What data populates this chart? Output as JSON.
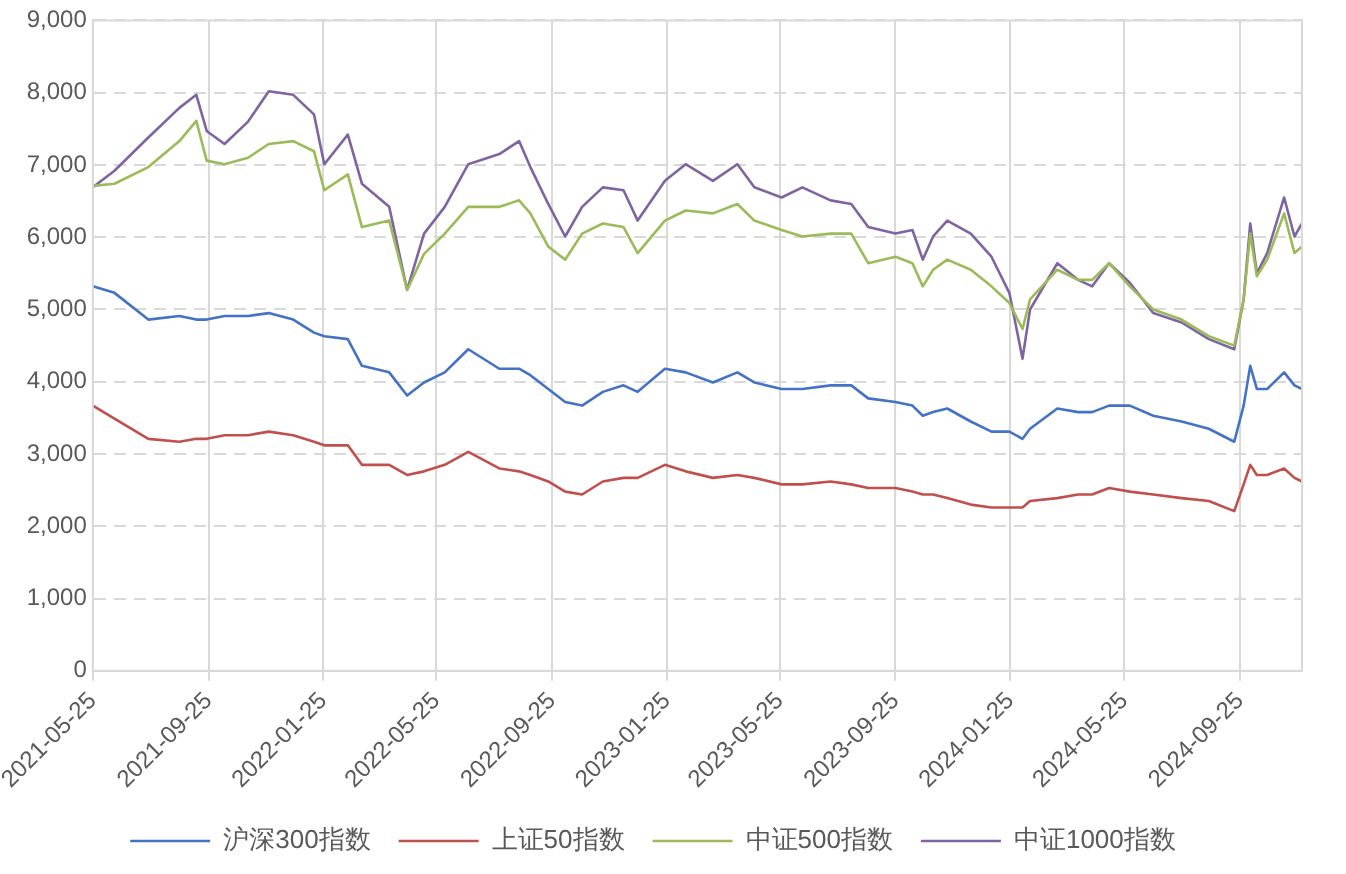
{
  "chart_data": {
    "type": "line",
    "legend": "bottom",
    "grid": true,
    "line_style": "solid",
    "marker": "none",
    "xlim": [
      "2021-05-25",
      "2024-11-30"
    ],
    "xticks": [
      "2021-05-25",
      "2021-09-25",
      "2022-01-25",
      "2022-05-25",
      "2022-09-25",
      "2023-01-25",
      "2023-05-25",
      "2023-09-25",
      "2024-01-25",
      "2024-05-25",
      "2024-09-25"
    ],
    "ylim": [
      0,
      9000
    ],
    "yticks": [
      0,
      {
        "value": 1000,
        "label": "1,000"
      },
      {
        "value": 2000,
        "label": "2,000"
      },
      {
        "value": 3000,
        "label": "3,000"
      },
      {
        "value": 4000,
        "label": "4,000"
      },
      {
        "value": 5000,
        "label": "5,000"
      },
      {
        "value": 6000,
        "label": "6,000"
      },
      {
        "value": 7000,
        "label": "7,000"
      },
      {
        "value": 8000,
        "label": "8,000"
      },
      {
        "value": 9000,
        "label": "9,000"
      }
    ],
    "x": [
      "2021-05-25",
      "2021-06-17",
      "2021-07-23",
      "2021-08-25",
      "2021-09-12",
      "2021-09-23",
      "2021-10-12",
      "2021-11-06",
      "2021-11-28",
      "2021-12-24",
      "2022-01-15",
      "2022-01-26",
      "2022-02-20",
      "2022-03-07",
      "2022-04-05",
      "2022-04-24",
      "2022-05-12",
      "2022-06-03",
      "2022-06-28",
      "2022-07-31",
      "2022-08-21",
      "2022-09-02",
      "2022-09-21",
      "2022-10-09",
      "2022-10-27",
      "2022-11-18",
      "2022-12-10",
      "2022-12-25",
      "2023-01-23",
      "2023-02-14",
      "2023-03-15",
      "2023-04-10",
      "2023-04-28",
      "2023-05-27",
      "2023-06-18",
      "2023-07-18",
      "2023-08-09",
      "2023-08-27",
      "2023-09-25",
      "2023-10-13",
      "2023-10-24",
      "2023-11-04",
      "2023-11-19",
      "2023-12-14",
      "2024-01-05",
      "2024-01-24",
      "2024-02-07",
      "2024-02-15",
      "2024-03-15",
      "2024-04-06",
      "2024-04-21",
      "2024-05-09",
      "2024-05-31",
      "2024-06-25",
      "2024-07-25",
      "2024-08-23",
      "2024-09-19",
      "2024-09-29",
      "2024-10-06",
      "2024-10-13",
      "2024-10-24",
      "2024-11-11",
      "2024-11-22",
      "2024-11-30"
    ],
    "series": [
      {
        "name": "沪深300指数",
        "color": "#4472c4",
        "values": [
          5320,
          5230,
          4860,
          4910,
          4860,
          4860,
          4910,
          4910,
          4950,
          4860,
          4680,
          4630,
          4590,
          4220,
          4130,
          3810,
          3990,
          4130,
          4450,
          4180,
          4180,
          4090,
          3900,
          3720,
          3670,
          3860,
          3950,
          3860,
          4180,
          4130,
          3990,
          4130,
          3990,
          3900,
          3900,
          3950,
          3950,
          3770,
          3720,
          3670,
          3530,
          3580,
          3630,
          3450,
          3310,
          3310,
          3210,
          3350,
          3630,
          3580,
          3580,
          3670,
          3670,
          3530,
          3450,
          3350,
          3170,
          3670,
          4220,
          3900,
          3900,
          4130,
          3950,
          3900
        ]
      },
      {
        "name": "上证50指数",
        "color": "#c0504d",
        "values": [
          3670,
          3490,
          3210,
          3170,
          3210,
          3210,
          3260,
          3260,
          3310,
          3260,
          3170,
          3120,
          3120,
          2850,
          2850,
          2710,
          2760,
          2850,
          3030,
          2800,
          2760,
          2710,
          2620,
          2480,
          2440,
          2620,
          2670,
          2670,
          2850,
          2760,
          2670,
          2710,
          2670,
          2580,
          2580,
          2620,
          2580,
          2530,
          2530,
          2480,
          2440,
          2440,
          2390,
          2300,
          2260,
          2260,
          2260,
          2350,
          2390,
          2440,
          2440,
          2530,
          2480,
          2440,
          2390,
          2350,
          2210,
          2580,
          2850,
          2710,
          2710,
          2800,
          2670,
          2620
        ]
      },
      {
        "name": "中证500指数",
        "color": "#9bbb59",
        "values": [
          6710,
          6740,
          6970,
          7330,
          7610,
          7060,
          7010,
          7100,
          7290,
          7330,
          7190,
          6650,
          6870,
          6140,
          6230,
          5270,
          5770,
          6050,
          6420,
          6420,
          6510,
          6330,
          5870,
          5690,
          6050,
          6190,
          6140,
          5780,
          6230,
          6370,
          6330,
          6460,
          6230,
          6100,
          6010,
          6050,
          6050,
          5640,
          5730,
          5640,
          5320,
          5550,
          5690,
          5550,
          5320,
          5090,
          4730,
          5140,
          5550,
          5410,
          5410,
          5640,
          5320,
          5000,
          4860,
          4630,
          4500,
          5140,
          6050,
          5460,
          5690,
          6330,
          5780,
          5870
        ]
      },
      {
        "name": "中证1000指数",
        "color": "#8064a2",
        "values": [
          6690,
          6920,
          7380,
          7790,
          7970,
          7470,
          7290,
          7600,
          8020,
          7970,
          7700,
          7010,
          7420,
          6740,
          6420,
          5270,
          6050,
          6420,
          7010,
          7150,
          7330,
          6970,
          6460,
          6010,
          6420,
          6690,
          6650,
          6230,
          6780,
          7010,
          6780,
          7010,
          6690,
          6550,
          6690,
          6510,
          6460,
          6140,
          6050,
          6100,
          5690,
          6010,
          6230,
          6050,
          5730,
          5230,
          4320,
          5000,
          5640,
          5410,
          5320,
          5640,
          5370,
          4950,
          4820,
          4590,
          4450,
          5140,
          6190,
          5500,
          5780,
          6550,
          6010,
          6190
        ]
      }
    ]
  }
}
